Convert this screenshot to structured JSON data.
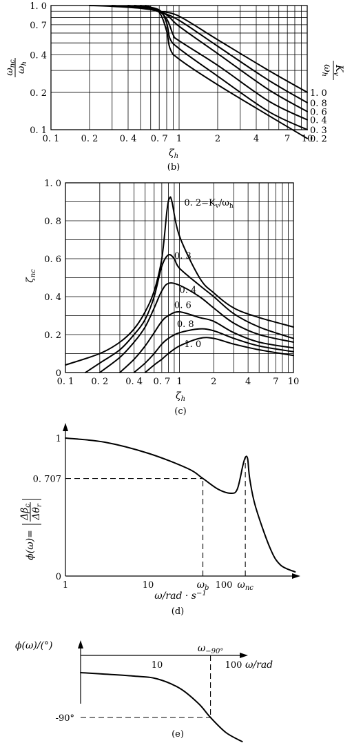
{
  "chart_data": [
    {
      "id": "b",
      "type": "line",
      "caption": "(b)",
      "xscale": "log",
      "yscale": "log",
      "xlim": [
        0.1,
        10
      ],
      "ylim": [
        0.1,
        1.0
      ],
      "x_ticks": [
        "0. 1",
        "0. 2",
        "0. 4",
        "0. 7",
        "1",
        "2",
        "4",
        "7",
        "10"
      ],
      "x_tick_values": [
        0.1,
        0.2,
        0.4,
        0.7,
        1,
        2,
        4,
        7,
        10
      ],
      "x_grid": [
        0.1,
        0.2,
        0.3,
        0.4,
        0.5,
        0.6,
        0.7,
        0.8,
        0.9,
        1,
        2,
        3,
        4,
        5,
        6,
        7,
        8,
        9,
        10
      ],
      "y_ticks": [
        "1. 0",
        "0. 7",
        "0. 4",
        "0. 2",
        "0. 1"
      ],
      "y_tick_values": [
        1.0,
        0.7,
        0.4,
        0.2,
        0.1
      ],
      "y_grid": [
        0.1,
        0.2,
        0.3,
        0.4,
        0.5,
        0.6,
        0.7,
        0.8,
        0.9,
        1.0
      ],
      "xlabel": "ζ",
      "xlabel_sub": "h",
      "ylabel_num": "ω",
      "ylabel_num_sub": "nc",
      "ylabel_den": "ω",
      "ylabel_den_sub": "h",
      "right_label_num": "K",
      "right_label_num_sub": "v",
      "right_label_den": "ω",
      "right_label_den_sub": "h",
      "series": [
        {
          "label": "1. 0",
          "points": [
            [
              0.2,
              1.0
            ],
            [
              0.3,
              0.985
            ],
            [
              0.5,
              0.95
            ],
            [
              0.7,
              0.9
            ],
            [
              1,
              0.82
            ],
            [
              2,
              0.53
            ],
            [
              5,
              0.3
            ],
            [
              10,
              0.2
            ]
          ]
        },
        {
          "label": "0. 8",
          "points": [
            [
              0.3,
              1.0
            ],
            [
              0.5,
              0.96
            ],
            [
              0.7,
              0.89
            ],
            [
              1,
              0.76
            ],
            [
              2,
              0.47
            ],
            [
              5,
              0.25
            ],
            [
              10,
              0.165
            ]
          ]
        },
        {
          "label": "0. 6",
          "points": [
            [
              0.4,
              1.0
            ],
            [
              0.6,
              0.95
            ],
            [
              0.8,
              0.84
            ],
            [
              1,
              0.68
            ],
            [
              2,
              0.41
            ],
            [
              5,
              0.21
            ],
            [
              10,
              0.14
            ]
          ]
        },
        {
          "label": "0. 4",
          "points": [
            [
              0.45,
              1.0
            ],
            [
              0.65,
              0.94
            ],
            [
              0.8,
              0.78
            ],
            [
              0.9,
              0.58
            ],
            [
              1,
              0.52
            ],
            [
              2,
              0.33
            ],
            [
              5,
              0.17
            ],
            [
              10,
              0.12
            ]
          ]
        },
        {
          "label": "0. 3",
          "points": [
            [
              0.5,
              1.0
            ],
            [
              0.7,
              0.92
            ],
            [
              0.8,
              0.72
            ],
            [
              0.85,
              0.54
            ],
            [
              1,
              0.45
            ],
            [
              2,
              0.27
            ],
            [
              5,
              0.14
            ],
            [
              10,
              0.1
            ]
          ]
        },
        {
          "label": "0. 2",
          "points": [
            [
              0.55,
              1.0
            ],
            [
              0.7,
              0.88
            ],
            [
              0.8,
              0.62
            ],
            [
              0.85,
              0.45
            ],
            [
              1,
              0.37
            ],
            [
              2,
              0.23
            ],
            [
              5,
              0.13
            ],
            [
              10,
              0.085
            ]
          ]
        }
      ]
    },
    {
      "id": "c",
      "type": "line",
      "caption": "(c)",
      "xscale": "log",
      "yscale": "linear",
      "xlim": [
        0.1,
        10
      ],
      "ylim": [
        0,
        1.0
      ],
      "x_ticks": [
        "0. 1",
        "0. 2",
        "0. 4",
        "0. 7",
        "1",
        "2",
        "4",
        "7",
        "10"
      ],
      "x_tick_values": [
        0.1,
        0.2,
        0.4,
        0.7,
        1,
        2,
        4,
        7,
        10
      ],
      "x_grid": [
        0.1,
        0.2,
        0.3,
        0.4,
        0.5,
        0.6,
        0.7,
        0.8,
        0.9,
        1,
        2,
        3,
        4,
        5,
        6,
        7,
        8,
        9,
        10
      ],
      "y_ticks": [
        "1. 0",
        "0. 8",
        "0. 6",
        "0. 4",
        "0. 2",
        "0"
      ],
      "y_tick_values": [
        1.0,
        0.8,
        0.6,
        0.4,
        0.2,
        0
      ],
      "y_grid": [
        0,
        0.1,
        0.2,
        0.3,
        0.4,
        0.5,
        0.6,
        0.7,
        0.8,
        0.9,
        1.0
      ],
      "xlabel": "ζ",
      "xlabel_sub": "h",
      "ylabel": "ζ",
      "ylabel_sub": "nc",
      "series": [
        {
          "label": "0. 2=K",
          "label_sub": "v",
          "label_tail": "/ω",
          "label_tail_sub": "h",
          "label_at": [
            1.1,
            0.88
          ],
          "points": [
            [
              0.1,
              0.04
            ],
            [
              0.2,
              0.1
            ],
            [
              0.3,
              0.16
            ],
            [
              0.4,
              0.23
            ],
            [
              0.5,
              0.32
            ],
            [
              0.6,
              0.43
            ],
            [
              0.7,
              0.6
            ],
            [
              0.78,
              0.86
            ],
            [
              0.82,
              0.92
            ],
            [
              0.86,
              0.9
            ],
            [
              1,
              0.72
            ],
            [
              1.5,
              0.5
            ],
            [
              2,
              0.42
            ],
            [
              3,
              0.34
            ],
            [
              5,
              0.29
            ],
            [
              10,
              0.24
            ]
          ]
        },
        {
          "label": "0. 3",
          "label_at": [
            0.9,
            0.6
          ],
          "points": [
            [
              0.15,
              0.0
            ],
            [
              0.2,
              0.05
            ],
            [
              0.3,
              0.12
            ],
            [
              0.4,
              0.2
            ],
            [
              0.5,
              0.28
            ],
            [
              0.6,
              0.4
            ],
            [
              0.7,
              0.56
            ],
            [
              0.8,
              0.62
            ],
            [
              0.9,
              0.6
            ],
            [
              1,
              0.55
            ],
            [
              1.5,
              0.46
            ],
            [
              2,
              0.4
            ],
            [
              3,
              0.31
            ],
            [
              5,
              0.24
            ],
            [
              10,
              0.18
            ]
          ]
        },
        {
          "label": "0. 4",
          "label_at": [
            1.0,
            0.42
          ],
          "points": [
            [
              0.2,
              0.0
            ],
            [
              0.3,
              0.08
            ],
            [
              0.4,
              0.16
            ],
            [
              0.5,
              0.24
            ],
            [
              0.6,
              0.34
            ],
            [
              0.7,
              0.43
            ],
            [
              0.8,
              0.47
            ],
            [
              1,
              0.46
            ],
            [
              1.5,
              0.4
            ],
            [
              2,
              0.34
            ],
            [
              3,
              0.26
            ],
            [
              5,
              0.2
            ],
            [
              10,
              0.16
            ]
          ]
        },
        {
          "label": "0. 6",
          "label_at": [
            0.9,
            0.34
          ],
          "points": [
            [
              0.3,
              0.0
            ],
            [
              0.4,
              0.07
            ],
            [
              0.5,
              0.14
            ],
            [
              0.6,
              0.21
            ],
            [
              0.7,
              0.27
            ],
            [
              0.8,
              0.3
            ],
            [
              1,
              0.32
            ],
            [
              1.5,
              0.29
            ],
            [
              2,
              0.27
            ],
            [
              3,
              0.21
            ],
            [
              5,
              0.16
            ],
            [
              10,
              0.13
            ]
          ]
        },
        {
          "label": "0. 8",
          "label_at": [
            0.95,
            0.24
          ],
          "points": [
            [
              0.4,
              0.0
            ],
            [
              0.5,
              0.05
            ],
            [
              0.6,
              0.1
            ],
            [
              0.7,
              0.15
            ],
            [
              0.8,
              0.18
            ],
            [
              1,
              0.21
            ],
            [
              1.5,
              0.23
            ],
            [
              2,
              0.22
            ],
            [
              3,
              0.18
            ],
            [
              5,
              0.14
            ],
            [
              10,
              0.11
            ]
          ]
        },
        {
          "label": "1. 0",
          "label_at": [
            1.1,
            0.135
          ],
          "points": [
            [
              0.5,
              0.0
            ],
            [
              0.6,
              0.04
            ],
            [
              0.7,
              0.07
            ],
            [
              0.8,
              0.1
            ],
            [
              1,
              0.14
            ],
            [
              1.5,
              0.18
            ],
            [
              2,
              0.18
            ],
            [
              3,
              0.15
            ],
            [
              5,
              0.12
            ],
            [
              10,
              0.09
            ]
          ]
        }
      ]
    },
    {
      "id": "d",
      "type": "line",
      "caption": "(d)",
      "xscale": "log",
      "yscale": "linear",
      "x_ticks": [
        "1",
        "10",
        "100"
      ],
      "x_tick_values": [
        1,
        10,
        100
      ],
      "y_ticks": [
        "1",
        "0. 707",
        "0"
      ],
      "y_tick_values": [
        1,
        0.707,
        0
      ],
      "xlabel": "ω/rad · s",
      "xlabel_sup": "−1",
      "ylabel": "ϕ(ω)=",
      "ylabel_num": "Δβ",
      "ylabel_num_sub": "c",
      "ylabel_den": "Δθ",
      "ylabel_den_sub": "r",
      "markers": [
        {
          "label": "ω",
          "sub": "b",
          "x": 46
        },
        {
          "label": "ω",
          "sub": "nc",
          "x": 150
        }
      ],
      "series": [
        {
          "points": [
            [
              1,
              1.0
            ],
            [
              3,
              0.97
            ],
            [
              10,
              0.89
            ],
            [
              30,
              0.78
            ],
            [
              46,
              0.707
            ],
            [
              70,
              0.63
            ],
            [
              100,
              0.6
            ],
            [
              120,
              0.63
            ],
            [
              140,
              0.8
            ],
            [
              150,
              0.86
            ],
            [
              160,
              0.85
            ],
            [
              170,
              0.7
            ],
            [
              200,
              0.5
            ],
            [
              300,
              0.2
            ],
            [
              400,
              0.08
            ],
            [
              600,
              0.03
            ]
          ]
        }
      ]
    },
    {
      "id": "e",
      "type": "line",
      "caption": "(e)",
      "xscale": "log",
      "yscale": "linear",
      "x_ticks": [
        "10",
        "100"
      ],
      "x_tick_values": [
        10,
        100
      ],
      "y_ticks": [
        "-90°"
      ],
      "y_tick_values": [
        -90
      ],
      "xlabel": "ω/rad",
      "ylabel": "ϕ(ω)/(°)",
      "markers": [
        {
          "label": "ω",
          "sub": "−90°",
          "x": 50
        }
      ],
      "series": [
        {
          "points": [
            [
              1,
              -25
            ],
            [
              5,
              -30
            ],
            [
              10,
              -34
            ],
            [
              20,
              -48
            ],
            [
              35,
              -70
            ],
            [
              50,
              -90
            ],
            [
              80,
              -112
            ],
            [
              130,
              -125
            ]
          ]
        }
      ]
    }
  ]
}
